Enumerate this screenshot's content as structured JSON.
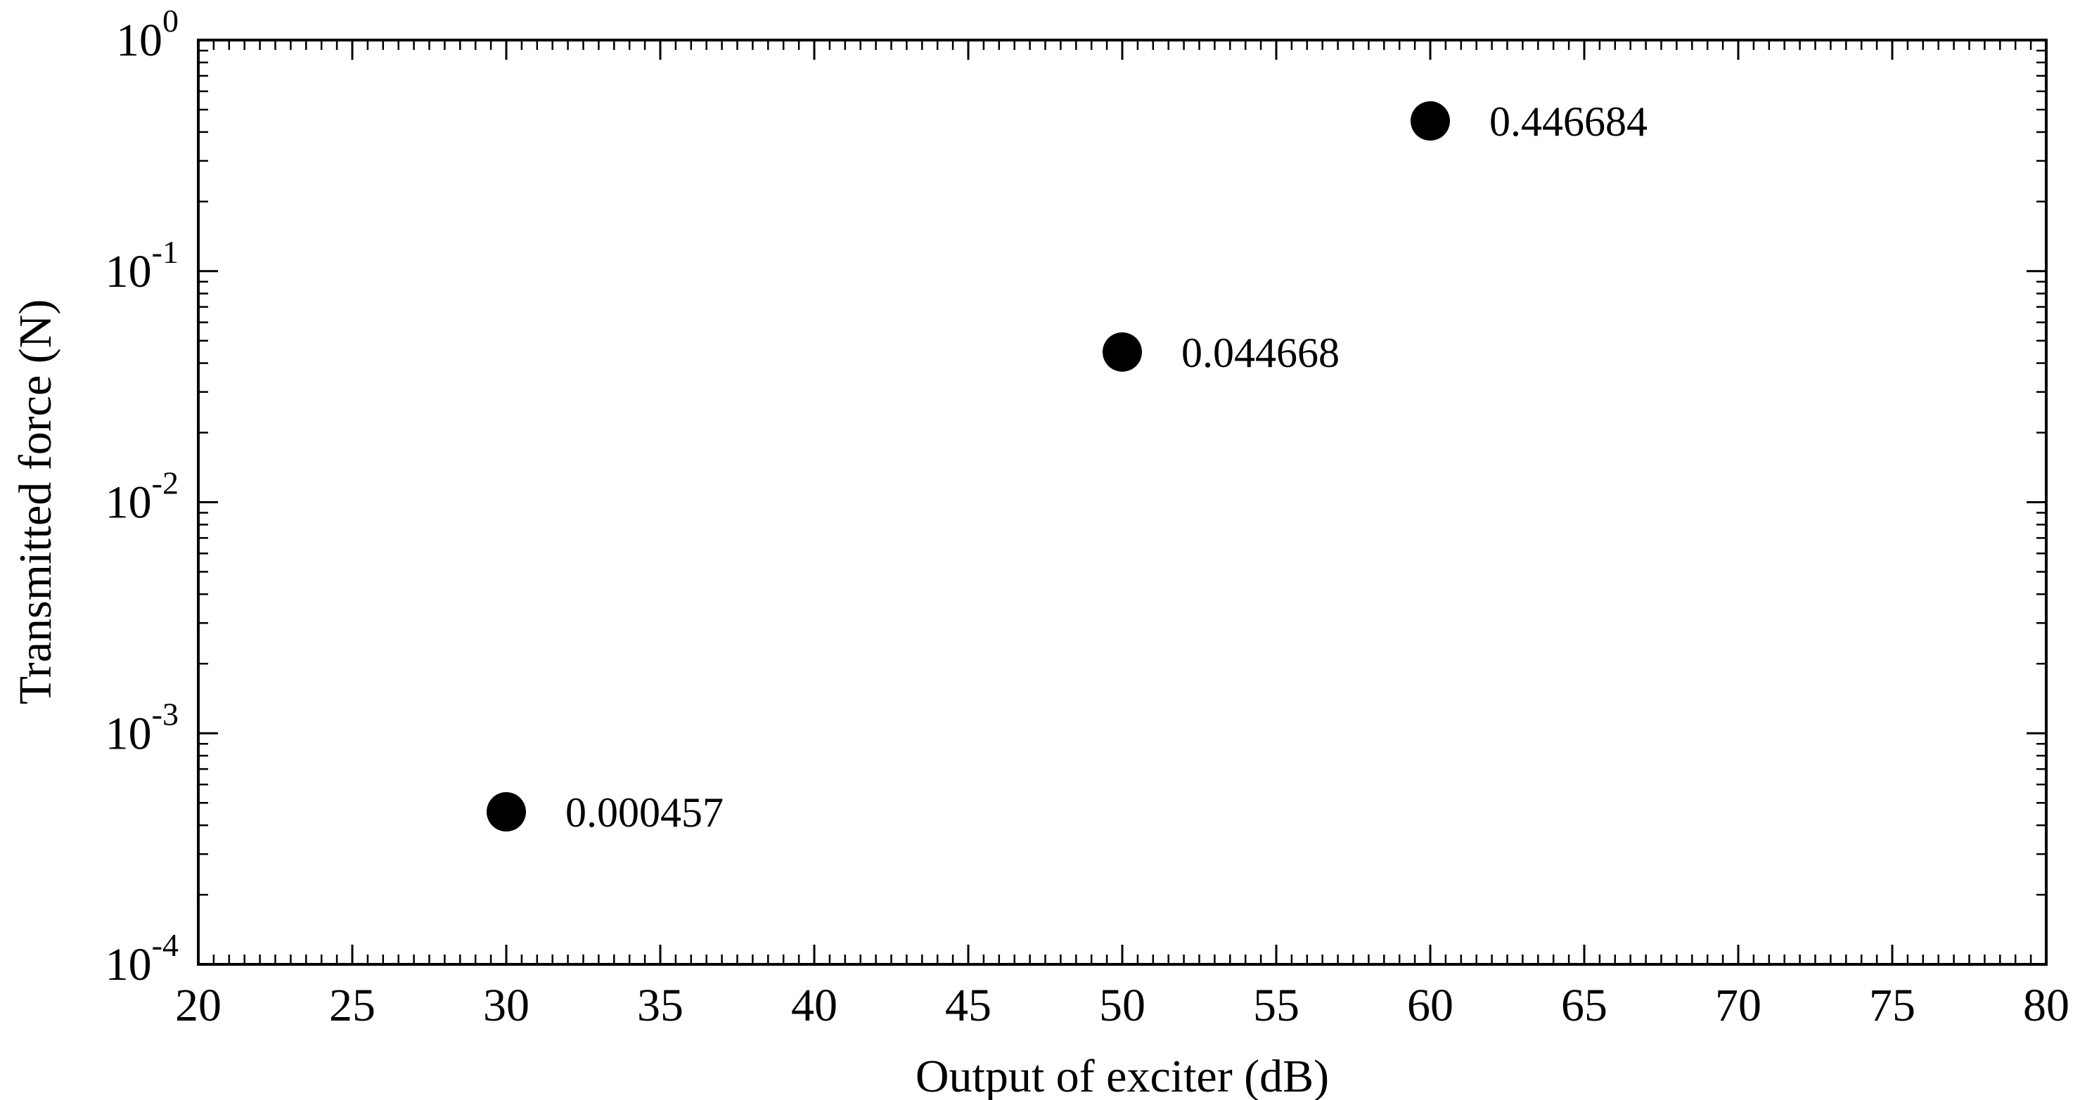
{
  "colors": {
    "background": "#ffffff",
    "foreground": "#000000",
    "marker": "#000000"
  },
  "chart_data": {
    "type": "scatter",
    "title": "",
    "xlabel": "Output of exciter (dB)",
    "ylabel": "Transmitted force (N)",
    "grid": false,
    "legend": null,
    "x_axis": {
      "scale": "linear",
      "min": 20,
      "max": 80,
      "major_tick_step": 5,
      "minor_tick_step": 0.5,
      "tick_labels": [
        "20",
        "25",
        "30",
        "35",
        "40",
        "45",
        "50",
        "55",
        "60",
        "65",
        "70",
        "75",
        "80"
      ]
    },
    "y_axis": {
      "scale": "log",
      "min": 0.0001,
      "max": 1,
      "decade_exponents": [
        0,
        -1,
        -2,
        -3,
        -4
      ],
      "tick_labels": [
        "10^0",
        "10^-1",
        "10^-2",
        "10^-3",
        "10^-4"
      ],
      "minor_ticks": "log-2-to-9"
    },
    "points": [
      {
        "x": 30,
        "y": 0.000457,
        "label": "0.000457"
      },
      {
        "x": 50,
        "y": 0.044668,
        "label": "0.044668"
      },
      {
        "x": 60,
        "y": 0.446684,
        "label": "0.446684"
      }
    ],
    "marker": {
      "shape": "filled-circle",
      "color": "#000000"
    }
  }
}
